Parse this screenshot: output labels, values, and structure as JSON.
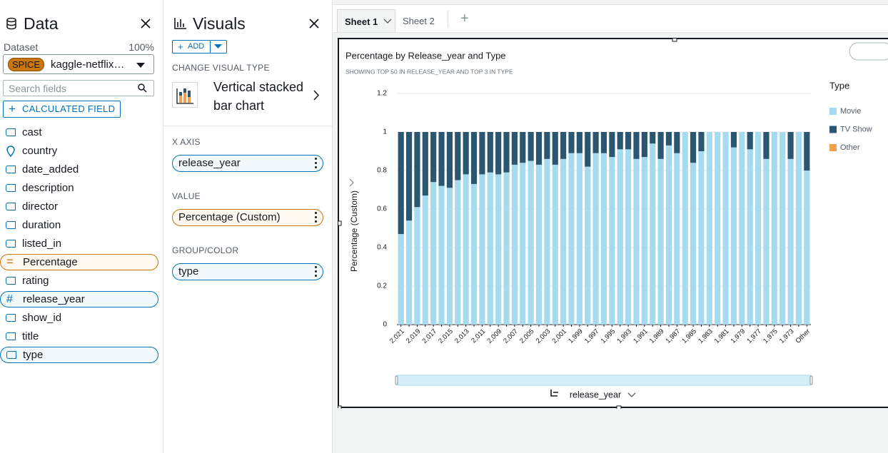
{
  "data_panel": {
    "title": "Data",
    "dataset_label": "Dataset",
    "dataset_percent": "100%",
    "spice": "SPICE",
    "dataset_name": "kaggle-netflix…",
    "search_placeholder": "Search fields",
    "calculated_field": "CALCULATED FIELD",
    "fields": [
      "cast",
      "country",
      "date_added",
      "description",
      "director",
      "duration",
      "listed_in",
      "Percentage",
      "rating",
      "release_year",
      "show_id",
      "title",
      "type"
    ]
  },
  "visuals_panel": {
    "title": "Visuals",
    "add": "ADD",
    "change_visual_type": "CHANGE VISUAL TYPE",
    "visual_type": "Vertical stacked bar chart",
    "x_axis_label": "X AXIS",
    "x_axis_field": "release_year",
    "value_label": "VALUE",
    "value_field": "Percentage (Custom)",
    "group_label": "GROUP/COLOR",
    "group_field": "type"
  },
  "sheets": [
    "Sheet 1",
    "Sheet 2"
  ],
  "chart_data": {
    "type": "bar",
    "stacked": true,
    "title": "Percentage by Release_year and Type",
    "subtitle": "SHOWING TOP 50 IN RELEASE_YEAR AND TOP 3 IN TYPE",
    "y_label": "Percentage (Custom)",
    "x_label": "release_year",
    "legend_title": "Type",
    "categories": [
      "2,021",
      null,
      "2,019",
      null,
      "2,017",
      null,
      "2,015",
      null,
      "2,013",
      null,
      "2,011",
      null,
      "2,009",
      null,
      "2,007",
      null,
      "2,005",
      null,
      "2,003",
      null,
      "2,001",
      null,
      "1,999",
      null,
      "1,997",
      null,
      "1,995",
      null,
      "1,993",
      null,
      "1,991",
      null,
      "1,989",
      null,
      "1,987",
      null,
      "1,985",
      null,
      "1,983",
      null,
      "1,981",
      null,
      "1,979",
      null,
      "1,977",
      null,
      "1,975",
      null,
      "1,973",
      null,
      "Other"
    ],
    "series": [
      {
        "name": "Movie",
        "color": "#a6dbef",
        "values": [
          0.47,
          0.54,
          0.61,
          0.67,
          0.74,
          0.72,
          0.71,
          0.75,
          0.78,
          0.73,
          0.78,
          0.79,
          0.78,
          0.79,
          0.83,
          0.84,
          0.85,
          0.83,
          0.86,
          0.83,
          0.86,
          0.89,
          0.89,
          0.82,
          0.89,
          0.89,
          0.87,
          0.91,
          0.91,
          0.86,
          0.87,
          0.94,
          0.86,
          0.93,
          0.89,
          1,
          0.84,
          0.9,
          1,
          1,
          1,
          0.92,
          1,
          0.91,
          1,
          0.86,
          1,
          1,
          0.86,
          1,
          0.8
        ]
      },
      {
        "name": "TV Show",
        "color": "#2b5672",
        "values": [
          0.53,
          0.46,
          0.39,
          0.33,
          0.26,
          0.28,
          0.29,
          0.25,
          0.22,
          0.27,
          0.22,
          0.21,
          0.22,
          0.21,
          0.17,
          0.16,
          0.15,
          0.17,
          0.14,
          0.17,
          0.14,
          0.11,
          0.11,
          0.18,
          0.11,
          0.11,
          0.13,
          0.09,
          0.09,
          0.14,
          0.13,
          0.06,
          0.14,
          0.07,
          0.11,
          0,
          0.16,
          0.1,
          0,
          0,
          0,
          0.08,
          0,
          0.09,
          0,
          0.14,
          0,
          0,
          0.14,
          0,
          0.2
        ]
      },
      {
        "name": "Other",
        "color": "#f3a04c",
        "values": [
          0,
          0,
          0,
          0,
          0,
          0,
          0,
          0,
          0,
          0,
          0,
          0,
          0,
          0,
          0,
          0,
          0,
          0,
          0,
          0,
          0,
          0,
          0,
          0,
          0,
          0,
          0,
          0,
          0,
          0,
          0,
          0,
          0,
          0,
          0,
          0,
          0,
          0,
          0,
          0,
          0,
          0,
          0,
          0,
          0,
          0,
          0,
          0,
          0,
          0,
          0
        ]
      }
    ],
    "ylim": [
      0,
      1.2
    ],
    "yticks": [
      0,
      0.2,
      0.4,
      0.6,
      0.8,
      1,
      1.2
    ],
    "grid": true,
    "legend": "right"
  }
}
